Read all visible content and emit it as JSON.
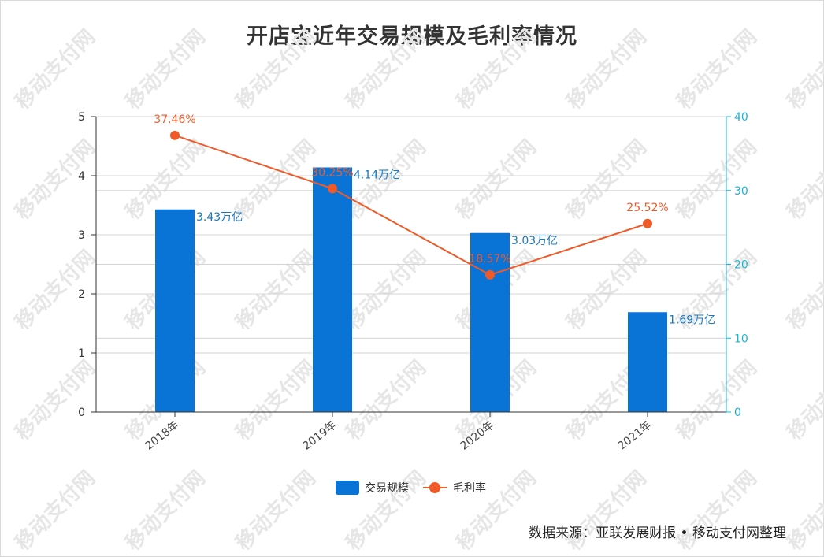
{
  "chart_data": {
    "type": "bar",
    "title": "开店宝近年交易规模及毛利率情况",
    "categories": [
      "2018年",
      "2019年",
      "2020年",
      "2021年"
    ],
    "series": [
      {
        "name": "交易规模",
        "type": "bar",
        "axis": "left",
        "values": [
          3.43,
          4.14,
          3.03,
          1.69
        ],
        "labels": [
          "3.43万亿",
          "4.14万亿",
          "3.03万亿",
          "1.69万亿"
        ],
        "color": "#0a74d6"
      },
      {
        "name": "毛利率",
        "type": "line",
        "axis": "right",
        "values": [
          37.46,
          30.25,
          18.57,
          25.52
        ],
        "labels": [
          "37.46%",
          "30.25%",
          "18.57%",
          "25.52%"
        ],
        "color": "#f05a28"
      }
    ],
    "ylim_left": [
      0,
      5
    ],
    "yticks_left": [
      "0",
      "1",
      "2",
      "3",
      "4",
      "5"
    ],
    "ylim_right": [
      0,
      40
    ],
    "yticks_right": [
      "0",
      "10",
      "20",
      "30",
      "40"
    ],
    "right_axis_color": "#18b4d8",
    "grid": true,
    "legend_position": "bottom"
  },
  "watermark": "移动支付网",
  "source": "数据来源：亚联发展财报 • 移动支付网整理"
}
